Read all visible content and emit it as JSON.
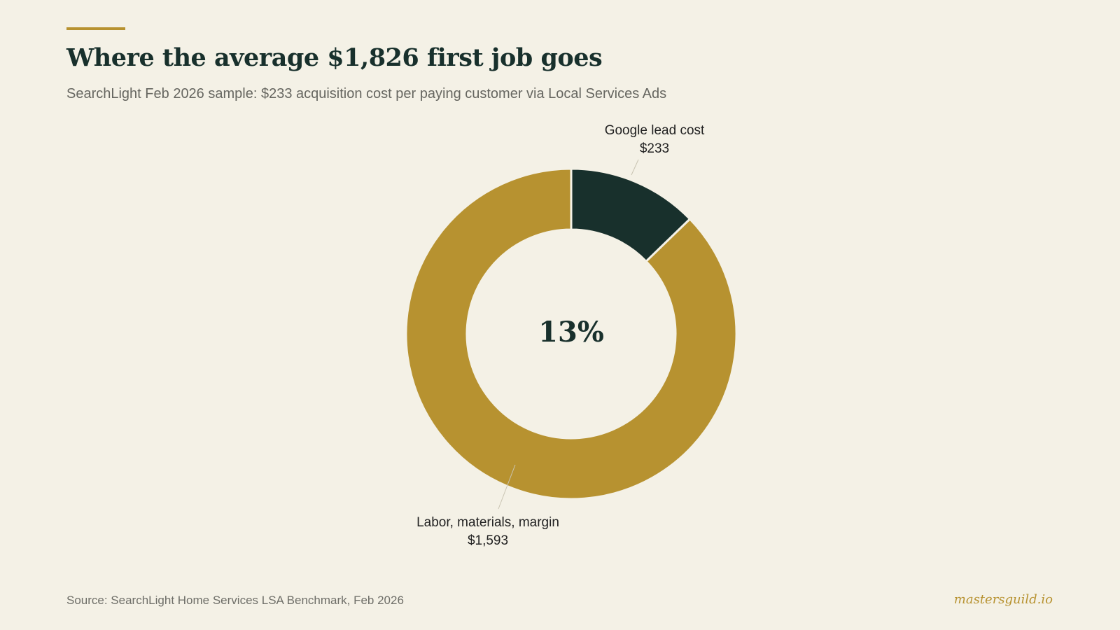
{
  "header": {
    "title": "Where the average $1,826 first job goes",
    "subtitle": "SearchLight Feb 2026 sample: $233 acquisition cost per paying customer via Local Services Ads"
  },
  "chart_data": {
    "type": "pie",
    "variant": "donut",
    "title": "Where the average $1,826 first job goes",
    "subtitle": "SearchLight Feb 2026 sample: $233 acquisition cost per paying customer via Local Services Ads",
    "total": 1826,
    "center_label": "13%",
    "slices": [
      {
        "label": "Google lead cost",
        "value": 233,
        "value_label": "$233",
        "color": "#18302c"
      },
      {
        "label": "Labor, materials, margin",
        "value": 1593,
        "value_label": "$1,593",
        "color": "#b79230"
      }
    ],
    "legend": "none"
  },
  "footer": {
    "source": "Source: SearchLight Home Services LSA Benchmark, Feb 2026",
    "brand": "mastersguild.io"
  },
  "colors": {
    "background": "#f4f1e6",
    "accent": "#b79230",
    "dark": "#18302c",
    "muted_text": "#666660"
  }
}
